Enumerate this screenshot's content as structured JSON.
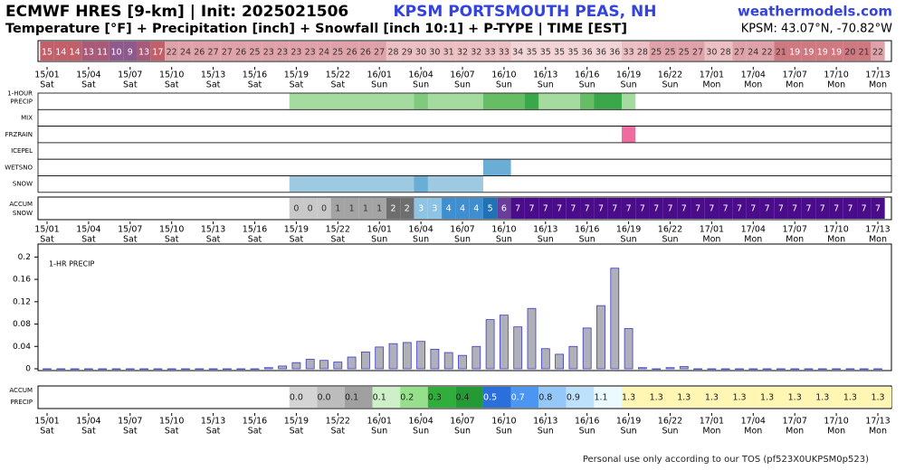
{
  "chart_data": {
    "type": "meteogram",
    "title": "ECMWF HRES [9-km] | Init: 2025021506",
    "station": "KPSM PORTSMOUTH PEAS, NH",
    "source": "weathermodels.com",
    "subtitle": "Temperature [°F] + Precipitation [inch] + Snowfall [inch 10:1] + P-TYPE | TIME [EST]",
    "location": "KPSM: 43.07°N, -70.82°W",
    "footer": "Personal use only according to our TOS (pf523X0UKPSM0p523)",
    "xticks": [
      {
        "value": 0,
        "label": "15/01"
      },
      {
        "value": 3,
        "label": "15/04"
      },
      {
        "value": 6,
        "label": "15/07"
      },
      {
        "value": 9,
        "label": "15/10"
      },
      {
        "value": 12,
        "label": "15/13"
      },
      {
        "value": 15,
        "label": "15/16"
      },
      {
        "value": 18,
        "label": "15/19"
      },
      {
        "value": 21,
        "label": "15/22"
      },
      {
        "value": 24,
        "label": "16/01"
      },
      {
        "value": 27,
        "label": "16/04"
      },
      {
        "value": 30,
        "label": "16/07"
      },
      {
        "value": 33,
        "label": "16/10"
      },
      {
        "value": 36,
        "label": "16/13"
      },
      {
        "value": 39,
        "label": "16/16"
      },
      {
        "value": 42,
        "label": "16/19"
      },
      {
        "value": 45,
        "label": "16/22"
      },
      {
        "value": 48,
        "label": "17/01"
      },
      {
        "value": 51,
        "label": "17/04"
      },
      {
        "value": 54,
        "label": "17/07"
      },
      {
        "value": 57,
        "label": "17/10"
      },
      {
        "value": 60,
        "label": "17/13"
      }
    ],
    "xtick_days": [
      "Sat",
      "Sat",
      "Sat",
      "Sat",
      "Sat",
      "Sat",
      "Sat",
      "Sat",
      "Sun",
      "Sun",
      "Sun",
      "Sun",
      "Sun",
      "Sun",
      "Sun",
      "Sun",
      "Mon",
      "Mon",
      "Mon",
      "Mon",
      "Mon"
    ],
    "x": [
      0,
      1,
      2,
      3,
      4,
      5,
      6,
      7,
      8,
      9,
      10,
      11,
      12,
      13,
      14,
      15,
      16,
      17,
      18,
      19,
      20,
      21,
      22,
      23,
      24,
      25,
      26,
      27,
      28,
      29,
      30,
      31,
      32,
      33,
      34,
      35,
      36,
      37,
      38,
      39,
      40,
      41,
      42,
      43,
      44,
      45,
      46,
      47,
      48,
      49,
      50,
      51,
      52,
      53,
      54,
      55,
      56,
      57,
      58,
      59,
      60
    ],
    "temperature": {
      "values": [
        15,
        14,
        14,
        13,
        11,
        10,
        9,
        13,
        17,
        22,
        24,
        26,
        27,
        27,
        26,
        25,
        23,
        23,
        23,
        23,
        24,
        25,
        26,
        26,
        27,
        28,
        29,
        30,
        30,
        31,
        32,
        32,
        33,
        33,
        34,
        35,
        35,
        35,
        35,
        36,
        36,
        36,
        33,
        28,
        25,
        25,
        25,
        27,
        30,
        28,
        27,
        24,
        22,
        21,
        19,
        19,
        19,
        19,
        20,
        21,
        22
      ]
    },
    "ptype": {
      "rows": [
        {
          "label": [
            "1-HOUR",
            "PRECIP"
          ],
          "segments": [
            {
              "start": 17.5,
              "end": 42.5,
              "color": "#a6dba0"
            },
            {
              "start": 26.5,
              "end": 27.5,
              "color": "#7fca7f"
            },
            {
              "start": 31.5,
              "end": 34.5,
              "color": "#66bd63"
            },
            {
              "start": 34.5,
              "end": 35.5,
              "color": "#3aa84a"
            },
            {
              "start": 38.5,
              "end": 39.5,
              "color": "#66bd63"
            },
            {
              "start": 39.5,
              "end": 41.5,
              "color": "#3aa84a"
            }
          ]
        },
        {
          "label": [
            "MIX"
          ],
          "segments": []
        },
        {
          "label": [
            "FRZRAIN"
          ],
          "segments": [
            {
              "start": 41.5,
              "end": 42.5,
              "color": "#f06ca0"
            }
          ]
        },
        {
          "label": [
            "ICEPEL"
          ],
          "segments": []
        },
        {
          "label": [
            "WETSNO"
          ],
          "segments": [
            {
              "start": 31.5,
              "end": 33.5,
              "color": "#6aaed6"
            }
          ]
        },
        {
          "label": [
            "SNOW"
          ],
          "segments": [
            {
              "start": 17.5,
              "end": 31.5,
              "color": "#9ecae1"
            },
            {
              "start": 26.5,
              "end": 27.5,
              "color": "#6aaed6"
            }
          ]
        }
      ]
    },
    "accum_snow": {
      "label": [
        "ACCUM",
        "SNOW"
      ],
      "x": [
        18,
        19,
        20,
        21,
        22,
        23,
        24,
        25,
        26,
        27,
        28,
        29,
        30,
        31,
        32,
        33,
        34,
        35,
        36,
        37,
        38,
        39,
        40,
        41,
        42,
        43,
        44,
        45,
        46,
        47,
        48,
        49,
        50,
        51,
        52,
        53,
        54,
        55,
        56,
        57,
        58,
        59,
        60
      ],
      "values": [
        0,
        0,
        0,
        1,
        1,
        1,
        1,
        2,
        2,
        3,
        3,
        4,
        4,
        4,
        5,
        6,
        7,
        7,
        7,
        7,
        7,
        7,
        7,
        7,
        7,
        7,
        7,
        7,
        7,
        7,
        7,
        7,
        7,
        7,
        7,
        7,
        7,
        7,
        7,
        7,
        7,
        7,
        7
      ],
      "palette": {
        "0": "#c8c8c8",
        "1": "#a4a4a4",
        "2": "#6e6e6e",
        "3": "#8fc3e4",
        "4": "#3f8fd0",
        "5": "#2171b5",
        "6": "#6a3d9a",
        "7": "#4b0c8c"
      }
    },
    "precip": {
      "label": "1-HR PRECIP",
      "values": [
        0,
        0,
        0,
        0,
        0,
        0,
        0,
        0,
        0,
        0,
        0,
        0,
        0,
        0,
        0,
        0,
        0.002,
        0.005,
        0.011,
        0.017,
        0.015,
        0.012,
        0.021,
        0.03,
        0.039,
        0.045,
        0.047,
        0.049,
        0.035,
        0.029,
        0.024,
        0.04,
        0.088,
        0.096,
        0.075,
        0.108,
        0.036,
        0.026,
        0.04,
        0.073,
        0.113,
        0.18,
        0.072,
        0.002,
        0,
        0.002,
        0.004,
        0,
        0,
        0,
        0,
        0,
        0,
        0,
        0,
        0,
        0,
        0,
        0,
        0,
        0
      ],
      "ylim": [
        0,
        0.22
      ],
      "yticks": [
        0,
        0.04,
        0.08,
        0.12,
        0.16,
        0.2
      ],
      "color": "#b0b0b8",
      "edge": "#3a3acc"
    },
    "accum_precip": {
      "label": [
        "ACCUM",
        "PRECIP"
      ],
      "x": [
        18,
        20,
        22,
        24,
        26,
        28,
        30,
        32,
        34,
        36,
        38,
        40,
        42,
        44,
        46,
        48,
        50,
        52,
        54,
        56,
        58,
        60
      ],
      "values": [
        0.0,
        0.0,
        0.1,
        0.1,
        0.2,
        0.3,
        0.4,
        0.5,
        0.7,
        0.8,
        0.9,
        1.1,
        1.3,
        1.3,
        1.3,
        1.3,
        1.3,
        1.3,
        1.3,
        1.3,
        1.3,
        1.3
      ],
      "value_labels": [
        "0.0",
        "0.0",
        "0.1",
        "0.1",
        "0.2",
        "0.3",
        "0.4",
        "0.5",
        "0.7",
        "0.8",
        "0.9",
        "1.1",
        "1.3",
        "1.3",
        "1.3",
        "1.3",
        "1.3",
        "1.3",
        "1.3",
        "1.3",
        "1.3",
        "1.3"
      ],
      "colors": [
        "#d4d4d4",
        "#bcbcbc",
        "#a0a0a0",
        "#cdf0c8",
        "#96e08c",
        "#2fae3c",
        "#239a33",
        "#2a6fdc",
        "#4a96f0",
        "#94c8f8",
        "#bde0fb",
        "#eafaff",
        "#fff6b4",
        "#fff6b4",
        "#fff6b4",
        "#fff6b4",
        "#fff6b4",
        "#fff6b4",
        "#fff6b4",
        "#fff6b4",
        "#fff6b4",
        "#fff6b4"
      ]
    }
  }
}
